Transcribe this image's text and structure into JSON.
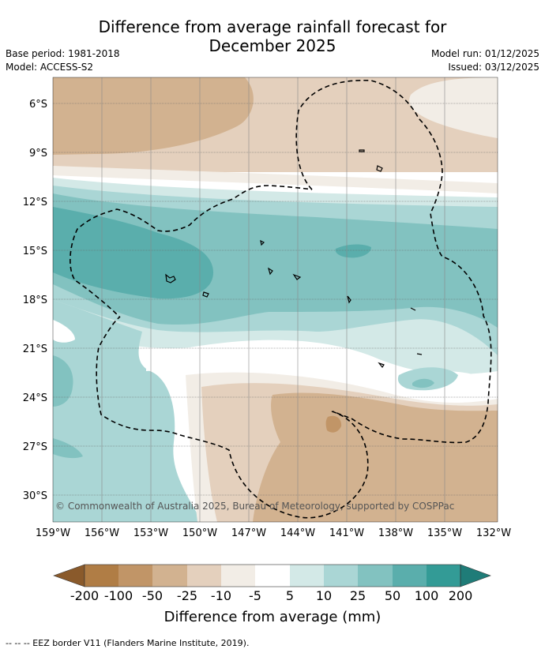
{
  "header": {
    "title_line1": "Difference from average rainfall forecast for",
    "title_line2": "December 2025",
    "base_period": "Base period: 1981-2018",
    "model": "Model: ACCESS-S2",
    "model_run": "Model run: 01/12/2025",
    "issued": "Issued: 03/12/2025"
  },
  "map": {
    "copyright": "© Commonwealth of Australia 2025, Bureau of Meteorology, supported by COSPPac",
    "lat_labels": [
      "6°S",
      "9°S",
      "12°S",
      "15°S",
      "18°S",
      "21°S",
      "24°S",
      "27°S",
      "30°S"
    ],
    "lon_labels": [
      "159°W",
      "156°W",
      "153°W",
      "150°W",
      "147°W",
      "144°W",
      "141°W",
      "138°W",
      "135°W",
      "132°W"
    ]
  },
  "colorbar": {
    "title": "Difference from average (mm)",
    "labels": [
      "-200",
      "-100",
      "-50",
      "-25",
      "-10",
      "-5",
      "5",
      "10",
      "25",
      "50",
      "100",
      "200"
    ],
    "colors": {
      "c_200n": "#b07d45",
      "c_100n": "#c19567",
      "c_50n": "#d2b290",
      "c_25n": "#e4d0bd",
      "c_10n": "#f2ede6",
      "c_5": "#ffffff",
      "c_10": "#d3e9e7",
      "c_25": "#aad6d5",
      "c_50": "#82c2c0",
      "c_100": "#5aaeac",
      "c_200": "#339b96",
      "c_over": "#1f7c78"
    }
  },
  "footer": {
    "eez_legend": "--  --  -- EEZ border V11 (Flanders Marine Institute, 2019)."
  }
}
